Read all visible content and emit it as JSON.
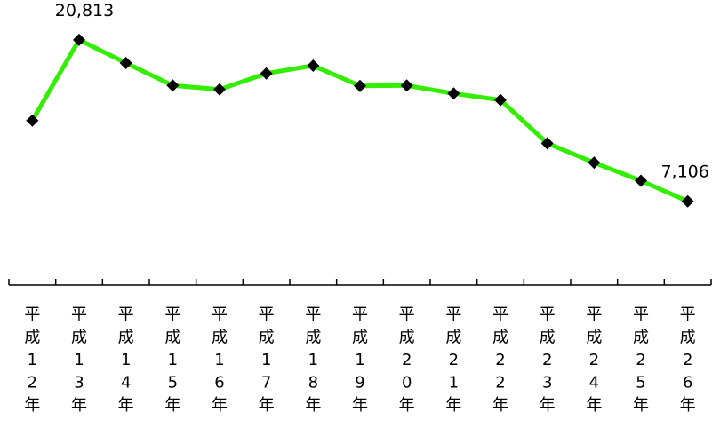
{
  "chart_data": {
    "type": "line",
    "categories": [
      "平成12年",
      "平成13年",
      "平成14年",
      "平成15年",
      "平成16年",
      "平成17年",
      "平成18年",
      "平成19年",
      "平成20年",
      "平成21年",
      "平成22年",
      "平成23年",
      "平成24年",
      "平成25年",
      "平成26年"
    ],
    "values": [
      13964,
      20813,
      18851,
      16942,
      16603,
      17964,
      18625,
      16907,
      16942,
      16263,
      15711,
      12038,
      10392,
      8856,
      7106
    ],
    "data_labels": [
      {
        "index": 1,
        "text": "20,813"
      },
      {
        "index": 14,
        "text": "7,106"
      }
    ],
    "ylim": [
      0,
      24200
    ],
    "grid": false,
    "line_color": "#33ee00",
    "marker_color": "#000000",
    "axis_color": "#000000"
  }
}
